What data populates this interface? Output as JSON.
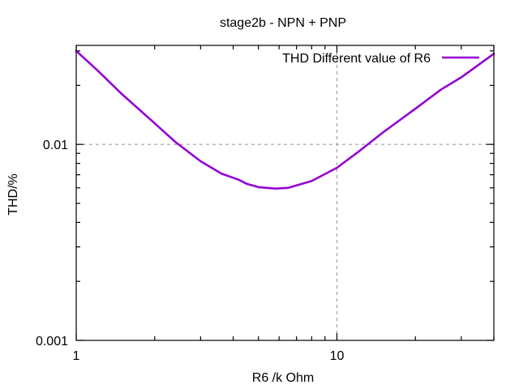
{
  "chart_data": {
    "type": "line",
    "title": "stage2b - NPN + PNP",
    "xlabel": "R6 /k Ohm",
    "ylabel": "THD/%",
    "x_scale": "log",
    "y_scale": "log",
    "xlim": [
      1,
      40
    ],
    "ylim": [
      0.001,
      0.032
    ],
    "x_tick_labels": [
      {
        "value": 1,
        "label": "1"
      },
      {
        "value": 10,
        "label": "10"
      }
    ],
    "y_tick_labels": [
      {
        "value": 0.001,
        "label": "0.001"
      },
      {
        "value": 0.01,
        "label": "0.01"
      }
    ],
    "grid": {
      "x": [
        10
      ],
      "y": [
        0.01
      ]
    },
    "legend_placement": "top-right",
    "series": [
      {
        "name": "THD  Different value of R6",
        "color": "#9400d3",
        "x": [
          1,
          1.2,
          1.5,
          2.0,
          2.4,
          3.0,
          3.6,
          4.2,
          4.5,
          5.0,
          5.8,
          6.5,
          8.0,
          10,
          12,
          15,
          20,
          25,
          30,
          40
        ],
        "y": [
          0.03,
          0.024,
          0.018,
          0.0128,
          0.0103,
          0.0082,
          0.0071,
          0.0066,
          0.0063,
          0.00605,
          0.00595,
          0.006,
          0.0065,
          0.0076,
          0.0091,
          0.0115,
          0.0152,
          0.019,
          0.022,
          0.029
        ]
      }
    ]
  }
}
